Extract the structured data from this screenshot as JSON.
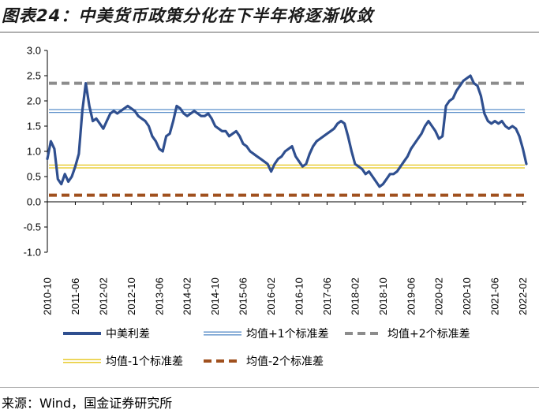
{
  "title": "图表24：中美货币政策分化在下半年将逐渐收敛",
  "source": "来源：Wind，国金证券研究所",
  "chart_data": {
    "type": "line",
    "ylim": [
      -1.0,
      3.0
    ],
    "ytick_labels": [
      "3.0",
      "2.5",
      "2.0",
      "1.5",
      "1.0",
      "0.5",
      "0.0",
      "-0.5",
      "-1.0"
    ],
    "yticks": [
      3.0,
      2.5,
      2.0,
      1.5,
      1.0,
      0.5,
      0.0,
      -0.5,
      -1.0
    ],
    "xtick_labels": [
      "2010-10",
      "2011-06",
      "2012-02",
      "2012-10",
      "2013-06",
      "2014-02",
      "2014-10",
      "2015-06",
      "2016-02",
      "2016-10",
      "2017-06",
      "2018-02",
      "2018-10",
      "2019-06",
      "2020-02",
      "2020-10",
      "2021-06",
      "2022-02"
    ],
    "x_range": [
      "2010-10",
      "2022-03"
    ],
    "series": [
      {
        "name": "中美利差",
        "color": "#2f4f8f",
        "style": "solid-thick",
        "x": [
          "2010-10",
          "2010-11",
          "2010-12",
          "2011-01",
          "2011-02",
          "2011-03",
          "2011-04",
          "2011-05",
          "2011-06",
          "2011-07",
          "2011-08",
          "2011-09",
          "2011-10",
          "2011-11",
          "2011-12",
          "2012-01",
          "2012-02",
          "2012-03",
          "2012-04",
          "2012-05",
          "2012-06",
          "2012-07",
          "2012-08",
          "2012-09",
          "2012-10",
          "2012-11",
          "2012-12",
          "2013-01",
          "2013-02",
          "2013-03",
          "2013-04",
          "2013-05",
          "2013-06",
          "2013-07",
          "2013-08",
          "2013-09",
          "2013-10",
          "2013-11",
          "2013-12",
          "2014-01",
          "2014-02",
          "2014-03",
          "2014-04",
          "2014-05",
          "2014-06",
          "2014-07",
          "2014-08",
          "2014-09",
          "2014-10",
          "2014-11",
          "2014-12",
          "2015-01",
          "2015-02",
          "2015-03",
          "2015-04",
          "2015-05",
          "2015-06",
          "2015-07",
          "2015-08",
          "2015-09",
          "2015-10",
          "2015-11",
          "2015-12",
          "2016-01",
          "2016-02",
          "2016-03",
          "2016-04",
          "2016-05",
          "2016-06",
          "2016-07",
          "2016-08",
          "2016-09",
          "2016-10",
          "2016-11",
          "2016-12",
          "2017-01",
          "2017-02",
          "2017-03",
          "2017-04",
          "2017-05",
          "2017-06",
          "2017-07",
          "2017-08",
          "2017-09",
          "2017-10",
          "2017-11",
          "2017-12",
          "2018-01",
          "2018-02",
          "2018-03",
          "2018-04",
          "2018-05",
          "2018-06",
          "2018-07",
          "2018-08",
          "2018-09",
          "2018-10",
          "2018-11",
          "2018-12",
          "2019-01",
          "2019-02",
          "2019-03",
          "2019-04",
          "2019-05",
          "2019-06",
          "2019-07",
          "2019-08",
          "2019-09",
          "2019-10",
          "2019-11",
          "2019-12",
          "2020-01",
          "2020-02",
          "2020-03",
          "2020-04",
          "2020-05",
          "2020-06",
          "2020-07",
          "2020-08",
          "2020-09",
          "2020-10",
          "2020-11",
          "2020-12",
          "2021-01",
          "2021-02",
          "2021-03",
          "2021-04",
          "2021-05",
          "2021-06",
          "2021-07",
          "2021-08",
          "2021-09",
          "2021-10",
          "2021-11",
          "2021-12",
          "2022-01",
          "2022-02",
          "2022-03"
        ],
        "values": [
          0.85,
          1.2,
          1.05,
          0.45,
          0.35,
          0.55,
          0.4,
          0.5,
          0.7,
          0.95,
          1.8,
          2.35,
          1.9,
          1.6,
          1.65,
          1.55,
          1.45,
          1.6,
          1.75,
          1.8,
          1.75,
          1.8,
          1.85,
          1.9,
          1.85,
          1.8,
          1.7,
          1.65,
          1.6,
          1.5,
          1.3,
          1.2,
          1.05,
          1.0,
          1.3,
          1.35,
          1.6,
          1.9,
          1.85,
          1.75,
          1.7,
          1.75,
          1.8,
          1.75,
          1.7,
          1.7,
          1.75,
          1.65,
          1.5,
          1.45,
          1.4,
          1.4,
          1.3,
          1.35,
          1.4,
          1.3,
          1.15,
          1.1,
          1.0,
          0.95,
          0.9,
          0.85,
          0.8,
          0.75,
          0.6,
          0.75,
          0.85,
          0.9,
          1.0,
          1.05,
          1.1,
          0.9,
          0.8,
          0.7,
          0.75,
          0.95,
          1.1,
          1.2,
          1.25,
          1.3,
          1.35,
          1.4,
          1.45,
          1.55,
          1.6,
          1.55,
          1.3,
          1.0,
          0.75,
          0.7,
          0.65,
          0.55,
          0.6,
          0.5,
          0.4,
          0.3,
          0.35,
          0.45,
          0.55,
          0.55,
          0.6,
          0.7,
          0.8,
          0.9,
          1.05,
          1.15,
          1.25,
          1.35,
          1.5,
          1.6,
          1.5,
          1.4,
          1.25,
          1.3,
          1.9,
          2.0,
          2.05,
          2.2,
          2.3,
          2.4,
          2.45,
          2.5,
          2.35,
          2.3,
          2.1,
          1.75,
          1.6,
          1.55,
          1.6,
          1.55,
          1.6,
          1.5,
          1.45,
          1.5,
          1.45,
          1.3,
          1.05,
          0.75
        ]
      },
      {
        "name": "均值+1个标准差",
        "color": "#5b8fc9",
        "style": "double",
        "value": 1.8
      },
      {
        "name": "均值+2个标准差",
        "color": "#8c8c8c",
        "style": "dashed",
        "value": 2.35
      },
      {
        "name": "均值-1个标准差",
        "color": "#e6c619",
        "style": "double",
        "value": 0.7
      },
      {
        "name": "均值-2个标准差",
        "color": "#a0501e",
        "style": "dashed",
        "value": 0.13
      }
    ],
    "grid": false,
    "legend_placement": "bottom"
  }
}
